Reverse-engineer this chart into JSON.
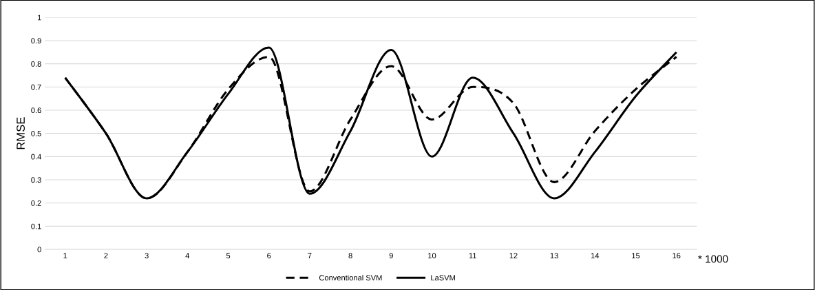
{
  "chart_data": {
    "type": "line",
    "ylabel": "RMSE",
    "xlabel": "* 1000",
    "categories": [
      "1",
      "2",
      "3",
      "4",
      "5",
      "6",
      "7",
      "8",
      "9",
      "10",
      "11",
      "12",
      "13",
      "14",
      "15",
      "16"
    ],
    "series": [
      {
        "name": "Conventional SVM",
        "color": "#000000",
        "line_style": "dashed",
        "values": [
          0.74,
          0.5,
          0.22,
          0.42,
          0.69,
          0.83,
          0.25,
          0.56,
          0.79,
          0.56,
          0.7,
          0.63,
          0.29,
          0.51,
          0.69,
          0.83
        ]
      },
      {
        "name": "LaSVM",
        "color": "#000000",
        "line_style": "solid",
        "values": [
          0.74,
          0.5,
          0.22,
          0.42,
          0.67,
          0.87,
          0.24,
          0.51,
          0.86,
          0.4,
          0.74,
          0.5,
          0.22,
          0.42,
          0.66,
          0.85
        ]
      }
    ],
    "ylim": [
      0,
      1
    ],
    "yticks": [
      0,
      0.1,
      0.2,
      0.3,
      0.4,
      0.5,
      0.6,
      0.7,
      0.8,
      0.9,
      1
    ],
    "grid": "y",
    "legend": "bottom",
    "marker": "none"
  }
}
